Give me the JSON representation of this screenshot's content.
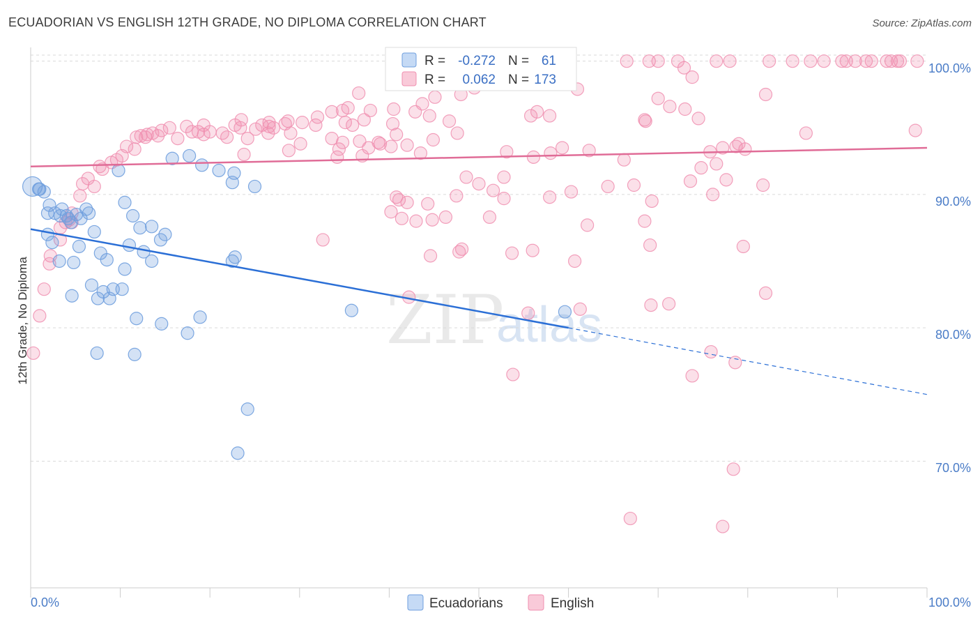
{
  "header": {
    "title": "ECUADORIAN VS ENGLISH 12TH GRADE, NO DIPLOMA CORRELATION CHART",
    "source": "Source: ZipAtlas.com"
  },
  "watermark": {
    "zip": "ZIP",
    "atlas": "atlas"
  },
  "legend_top": {
    "rows": [
      {
        "r_label": "R =",
        "r_value": "-0.272",
        "n_label": "N =",
        "n_value": "61",
        "color": "#6f9fde"
      },
      {
        "r_label": "R =",
        "r_value": "0.062",
        "n_label": "N =",
        "n_value": "173",
        "color": "#f08fb0"
      }
    ]
  },
  "legend_bottom": {
    "items": [
      {
        "label": "Ecuadorians",
        "color": "#6f9fde"
      },
      {
        "label": "English",
        "color": "#f08fb0"
      }
    ]
  },
  "chart_data": {
    "type": "scatter",
    "title": "ECUADORIAN VS ENGLISH 12TH GRADE, NO DIPLOMA CORRELATION CHART",
    "ylabel": "12th Grade, No Diploma",
    "xlabel": "",
    "xlim": [
      0,
      100
    ],
    "ylim": [
      60.5,
      101.5
    ],
    "x_ticks_labels": [
      "0.0%",
      "100.0%"
    ],
    "y_ticks": [
      100,
      90,
      80,
      70
    ],
    "y_ticks_labels": [
      "100.0%",
      "90.0%",
      "80.0%",
      "70.0%"
    ],
    "grid": true,
    "legend_position": "top-center",
    "colors": {
      "ecuadorians": "#6f9fde",
      "english": "#f08fb0",
      "ecuadorians_line": "#2b6fd6",
      "english_line": "#e06c97"
    },
    "series": [
      {
        "name": "Ecuadorians",
        "trend": {
          "x0": 0,
          "y0": 87.4,
          "x1": 60,
          "y1": 80.0,
          "dash_to_x": 100,
          "dash_to_y": 75.0
        },
        "points": [
          [
            0.2,
            90.6
          ],
          [
            1.0,
            90.4
          ],
          [
            1.5,
            90.2
          ],
          [
            1.9,
            88.6
          ],
          [
            2.1,
            89.2
          ],
          [
            2.7,
            88.6
          ],
          [
            3.5,
            88.9
          ],
          [
            4.0,
            88.4
          ],
          [
            4.2,
            88.2
          ],
          [
            4.5,
            87.9
          ],
          [
            5.6,
            88.2
          ],
          [
            6.2,
            88.9
          ],
          [
            6.5,
            88.6
          ],
          [
            7.1,
            87.2
          ],
          [
            2.4,
            86.4
          ],
          [
            3.2,
            85.0
          ],
          [
            5.4,
            86.1
          ],
          [
            7.8,
            85.6
          ],
          [
            8.5,
            85.1
          ],
          [
            10.5,
            89.4
          ],
          [
            11.4,
            88.4
          ],
          [
            12.2,
            87.5
          ],
          [
            11.0,
            86.2
          ],
          [
            13.5,
            87.6
          ],
          [
            15.0,
            87.0
          ],
          [
            14.5,
            86.6
          ],
          [
            12.6,
            85.7
          ],
          [
            13.5,
            85.0
          ],
          [
            10.5,
            84.4
          ],
          [
            4.8,
            84.9
          ],
          [
            4.6,
            82.4
          ],
          [
            6.8,
            83.2
          ],
          [
            7.5,
            82.2
          ],
          [
            8.1,
            82.7
          ],
          [
            8.8,
            82.2
          ],
          [
            9.2,
            82.9
          ],
          [
            10.2,
            82.9
          ],
          [
            11.8,
            80.7
          ],
          [
            14.6,
            80.3
          ],
          [
            17.5,
            79.6
          ],
          [
            18.9,
            80.8
          ],
          [
            7.4,
            78.1
          ],
          [
            11.6,
            78.0
          ],
          [
            9.8,
            91.8
          ],
          [
            15.8,
            92.7
          ],
          [
            17.7,
            92.9
          ],
          [
            19.1,
            92.2
          ],
          [
            21.0,
            91.8
          ],
          [
            22.5,
            90.9
          ],
          [
            22.7,
            91.6
          ],
          [
            25.0,
            90.6
          ],
          [
            22.5,
            85.0
          ],
          [
            22.8,
            85.3
          ],
          [
            35.8,
            81.3
          ],
          [
            59.6,
            81.2
          ],
          [
            24.2,
            73.9
          ],
          [
            23.1,
            70.6
          ],
          [
            1.9,
            87.0
          ],
          [
            3.3,
            88.4
          ],
          [
            0.9,
            90.4
          ],
          [
            5.1,
            88.5
          ]
        ]
      },
      {
        "name": "English",
        "trend": {
          "x0": 0,
          "y0": 92.1,
          "x1": 100,
          "y1": 93.5
        },
        "points": [
          [
            66.5,
            100
          ],
          [
            69.0,
            100
          ],
          [
            70.0,
            100
          ],
          [
            72.2,
            100
          ],
          [
            76.5,
            100
          ],
          [
            78.0,
            100
          ],
          [
            82.4,
            100
          ],
          [
            85.0,
            100
          ],
          [
            87.0,
            100
          ],
          [
            88.5,
            100
          ],
          [
            90.5,
            100
          ],
          [
            91.0,
            100
          ],
          [
            92.0,
            100
          ],
          [
            93.2,
            100
          ],
          [
            93.8,
            100
          ],
          [
            95.5,
            100
          ],
          [
            96.0,
            100
          ],
          [
            96.7,
            100
          ],
          [
            97.0,
            100
          ],
          [
            98.9,
            100
          ],
          [
            72.9,
            99.5
          ],
          [
            73.8,
            98.8
          ],
          [
            82.0,
            97.5
          ],
          [
            61.0,
            97.9
          ],
          [
            49.5,
            98.0
          ],
          [
            48.0,
            97.5
          ],
          [
            43.7,
            96.8
          ],
          [
            36.6,
            97.6
          ],
          [
            45.1,
            97.3
          ],
          [
            35.4,
            96.5
          ],
          [
            34.8,
            96.3
          ],
          [
            33.6,
            96.2
          ],
          [
            35.1,
            95.4
          ],
          [
            37.9,
            96.3
          ],
          [
            40.5,
            96.4
          ],
          [
            42.9,
            96.2
          ],
          [
            44.5,
            95.9
          ],
          [
            40.4,
            95.3
          ],
          [
            46.7,
            95.5
          ],
          [
            37.2,
            95.6
          ],
          [
            32.0,
            95.8
          ],
          [
            28.7,
            95.5
          ],
          [
            25.8,
            95.2
          ],
          [
            23.4,
            95.0
          ],
          [
            20.0,
            94.7
          ],
          [
            18.0,
            94.7
          ],
          [
            19.3,
            94.5
          ],
          [
            21.4,
            94.6
          ],
          [
            25.1,
            94.9
          ],
          [
            26.6,
            95.1
          ],
          [
            28.4,
            95.3
          ],
          [
            30.3,
            95.4
          ],
          [
            31.8,
            95.2
          ],
          [
            27.1,
            95.0
          ],
          [
            22.8,
            95.2
          ],
          [
            17.4,
            95.1
          ],
          [
            15.5,
            95.0
          ],
          [
            14.6,
            94.8
          ],
          [
            13.6,
            94.6
          ],
          [
            13.0,
            94.5
          ],
          [
            12.3,
            94.4
          ],
          [
            11.8,
            94.3
          ],
          [
            12.8,
            94.3
          ],
          [
            14.2,
            94.4
          ],
          [
            16.4,
            94.2
          ],
          [
            18.7,
            94.7
          ],
          [
            21.9,
            94.3
          ],
          [
            24.2,
            94.2
          ],
          [
            26.5,
            94.6
          ],
          [
            29.0,
            94.6
          ],
          [
            30.1,
            93.8
          ],
          [
            34.4,
            93.4
          ],
          [
            39.0,
            93.8
          ],
          [
            42.0,
            93.7
          ],
          [
            43.5,
            93.1
          ],
          [
            44.9,
            94.1
          ],
          [
            47.6,
            94.6
          ],
          [
            40.2,
            93.6
          ],
          [
            37.0,
            92.9
          ],
          [
            34.2,
            92.8
          ],
          [
            28.8,
            93.3
          ],
          [
            23.8,
            93.0
          ],
          [
            10.7,
            93.6
          ],
          [
            11.6,
            93.4
          ],
          [
            10.2,
            92.9
          ],
          [
            9.6,
            92.6
          ],
          [
            9.0,
            92.4
          ],
          [
            7.7,
            92.1
          ],
          [
            8.0,
            91.9
          ],
          [
            6.4,
            91.2
          ],
          [
            5.8,
            90.8
          ],
          [
            7.1,
            90.6
          ],
          [
            5.5,
            89.9
          ],
          [
            4.6,
            88.6
          ],
          [
            4.3,
            88.1
          ],
          [
            4.6,
            87.9
          ],
          [
            3.9,
            87.9
          ],
          [
            3.3,
            87.5
          ],
          [
            3.3,
            86.6
          ],
          [
            2.2,
            85.4
          ],
          [
            2.1,
            84.8
          ],
          [
            1.5,
            82.9
          ],
          [
            1.0,
            80.9
          ],
          [
            0.3,
            78.1
          ],
          [
            26.6,
            95.4
          ],
          [
            23.5,
            95.6
          ],
          [
            19.3,
            95.2
          ],
          [
            33.6,
            94.2
          ],
          [
            35.9,
            95.2
          ],
          [
            34.8,
            93.9
          ],
          [
            36.7,
            94.0
          ],
          [
            37.7,
            93.5
          ],
          [
            38.8,
            93.9
          ],
          [
            40.8,
            94.5
          ],
          [
            55.8,
            95.9
          ],
          [
            56.5,
            96.2
          ],
          [
            57.9,
            95.9
          ],
          [
            68.5,
            95.6
          ],
          [
            68.6,
            95.5
          ],
          [
            70.0,
            97.2
          ],
          [
            71.3,
            96.6
          ],
          [
            73.0,
            96.4
          ],
          [
            74.5,
            95.7
          ],
          [
            86.5,
            94.6
          ],
          [
            98.7,
            94.8
          ],
          [
            77.2,
            93.5
          ],
          [
            78.7,
            93.6
          ],
          [
            79.0,
            93.8
          ],
          [
            79.7,
            93.4
          ],
          [
            76.5,
            92.3
          ],
          [
            77.6,
            91.1
          ],
          [
            75.8,
            93.2
          ],
          [
            74.8,
            92.0
          ],
          [
            73.6,
            91.0
          ],
          [
            66.2,
            92.6
          ],
          [
            62.3,
            93.3
          ],
          [
            59.3,
            93.5
          ],
          [
            58.0,
            93.1
          ],
          [
            56.1,
            92.8
          ],
          [
            53.1,
            93.2
          ],
          [
            52.8,
            91.3
          ],
          [
            51.6,
            90.3
          ],
          [
            50.0,
            90.8
          ],
          [
            48.6,
            91.3
          ],
          [
            47.5,
            89.9
          ],
          [
            52.8,
            89.7
          ],
          [
            57.9,
            89.8
          ],
          [
            60.3,
            90.2
          ],
          [
            64.4,
            90.6
          ],
          [
            67.3,
            90.7
          ],
          [
            69.3,
            89.5
          ],
          [
            76.1,
            90.0
          ],
          [
            81.7,
            90.7
          ],
          [
            68.5,
            88.0
          ],
          [
            62.1,
            87.7
          ],
          [
            51.2,
            88.3
          ],
          [
            46.3,
            88.3
          ],
          [
            44.8,
            88.1
          ],
          [
            43.0,
            88.0
          ],
          [
            41.4,
            88.2
          ],
          [
            40.8,
            89.8
          ],
          [
            41.1,
            89.6
          ],
          [
            44.3,
            89.3
          ],
          [
            42.0,
            89.4
          ],
          [
            40.2,
            88.7
          ],
          [
            32.6,
            86.6
          ],
          [
            48.1,
            85.9
          ],
          [
            44.6,
            85.4
          ],
          [
            47.8,
            85.7
          ],
          [
            53.7,
            85.6
          ],
          [
            56.0,
            85.8
          ],
          [
            60.7,
            85.0
          ],
          [
            69.1,
            86.2
          ],
          [
            79.5,
            86.1
          ],
          [
            71.2,
            81.8
          ],
          [
            69.2,
            81.7
          ],
          [
            61.3,
            81.4
          ],
          [
            55.5,
            81.1
          ],
          [
            42.2,
            82.3
          ],
          [
            82.0,
            82.6
          ],
          [
            75.9,
            78.2
          ],
          [
            78.6,
            77.4
          ],
          [
            73.8,
            76.4
          ],
          [
            53.8,
            76.5
          ],
          [
            78.4,
            69.4
          ],
          [
            66.9,
            65.7
          ],
          [
            77.2,
            65.1
          ]
        ]
      }
    ]
  }
}
